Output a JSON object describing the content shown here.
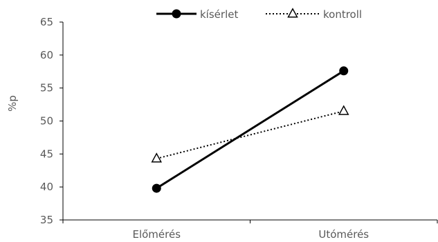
{
  "chart_data": {
    "type": "line",
    "categories": [
      "Előmérés",
      "Utómérés"
    ],
    "series": [
      {
        "name": "kísérlet",
        "values": [
          39.8,
          57.6
        ],
        "line_style": "solid",
        "marker": "filled-circle",
        "color": "#000000"
      },
      {
        "name": "kontroll",
        "values": [
          44.3,
          51.5
        ],
        "line_style": "dotted",
        "marker": "open-triangle",
        "color": "#000000"
      }
    ],
    "title": "",
    "xlabel": "",
    "ylabel": "%p",
    "ylim": [
      35,
      65
    ],
    "yticks": [
      35,
      40,
      45,
      50,
      55,
      60,
      65
    ],
    "grid": false,
    "legend_position": "top"
  }
}
